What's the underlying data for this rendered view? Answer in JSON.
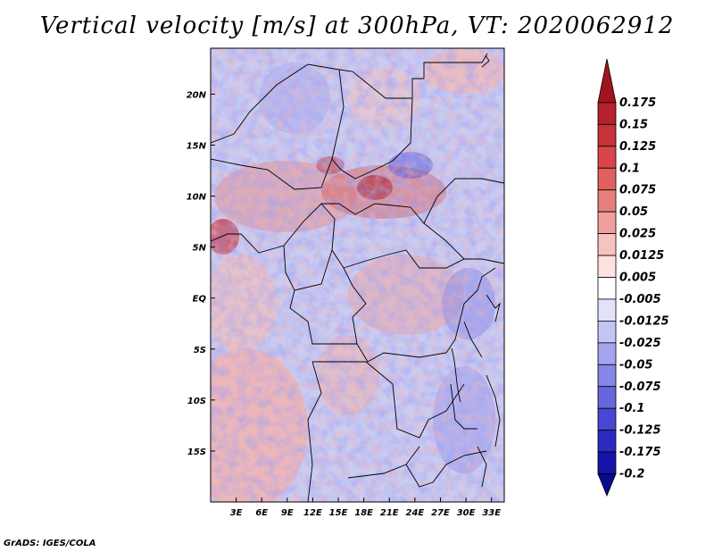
{
  "title": "Vertical velocity [m/s] at 300hPa, VT: 2020062912",
  "credit": "GrADS: IGES/COLA",
  "map": {
    "lon_range": [
      0,
      34.5
    ],
    "lat_range": [
      -20,
      24.5
    ],
    "y_ticks": [
      {
        "label": "20N",
        "lat": 20
      },
      {
        "label": "15N",
        "lat": 15
      },
      {
        "label": "10N",
        "lat": 10
      },
      {
        "label": "5N",
        "lat": 5
      },
      {
        "label": "EQ",
        "lat": 0
      },
      {
        "label": "5S",
        "lat": -5
      },
      {
        "label": "10S",
        "lat": -10
      },
      {
        "label": "15S",
        "lat": -15
      }
    ],
    "x_ticks": [
      {
        "label": "3E",
        "lon": 3
      },
      {
        "label": "6E",
        "lon": 6
      },
      {
        "label": "9E",
        "lon": 9
      },
      {
        "label": "12E",
        "lon": 12
      },
      {
        "label": "15E",
        "lon": 15
      },
      {
        "label": "18E",
        "lon": 18
      },
      {
        "label": "21E",
        "lon": 21
      },
      {
        "label": "24E",
        "lon": 24
      },
      {
        "label": "27E",
        "lon": 27
      },
      {
        "label": "30E",
        "lon": 30
      },
      {
        "label": "33E",
        "lon": 33
      }
    ]
  },
  "colorbar": {
    "labels": [
      "0.175",
      "0.15",
      "0.125",
      "0.1",
      "0.075",
      "0.05",
      "0.025",
      "0.0125",
      "0.005",
      "-0.005",
      "-0.0125",
      "-0.025",
      "-0.05",
      "-0.075",
      "-0.1",
      "-0.125",
      "-0.175",
      "-0.2"
    ],
    "colors": [
      "#a0141e",
      "#b4222b",
      "#c8323a",
      "#d8454a",
      "#e0605f",
      "#e87e7b",
      "#f0a09c",
      "#f7c3bf",
      "#fde2df",
      "#ffffff",
      "#e2e2fb",
      "#c5c5f5",
      "#a5a5ee",
      "#8686e6",
      "#6767dd",
      "#4747d2",
      "#2b2bc2",
      "#1414a8",
      "#0a0a8c"
    ]
  }
}
